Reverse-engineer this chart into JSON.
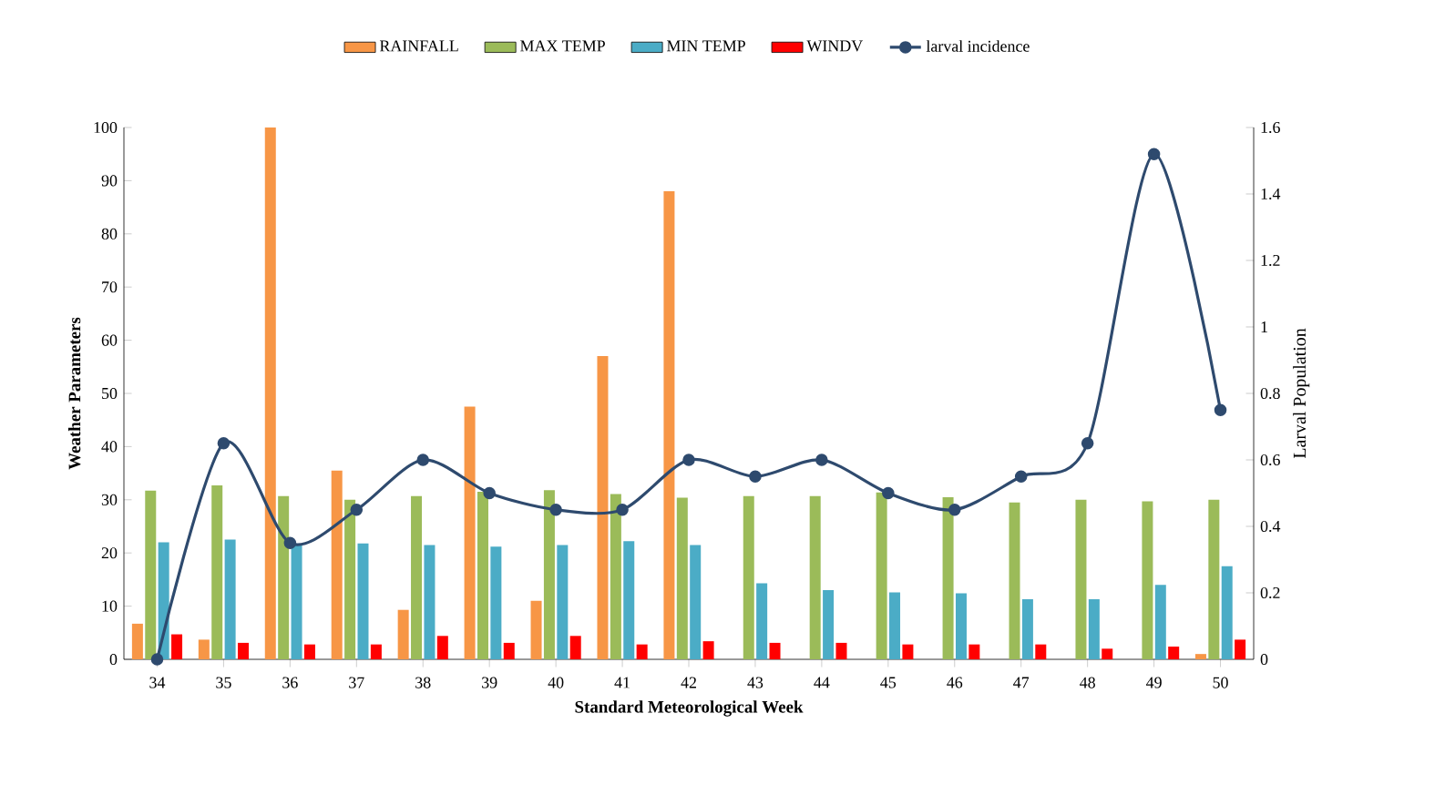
{
  "chart_data": {
    "type": "bar",
    "xlabel": "Standard Meteorological Week",
    "ylabel": "Weather Parameters",
    "y2label": "Larval Population",
    "categories": [
      "34",
      "35",
      "36",
      "37",
      "38",
      "39",
      "40",
      "41",
      "42",
      "43",
      "44",
      "45",
      "46",
      "47",
      "48",
      "49",
      "50"
    ],
    "series": [
      {
        "name": "RAINFALL",
        "color": "#f79646",
        "values": [
          6.7,
          3.7,
          100,
          35.5,
          9.3,
          47.5,
          11,
          57,
          88,
          0,
          0,
          0,
          0,
          0,
          0,
          0,
          1
        ]
      },
      {
        "name": "MAX TEMP",
        "color": "#9bbb59",
        "values": [
          31.7,
          32.7,
          30.7,
          30,
          30.7,
          31.5,
          31.8,
          31.1,
          30.4,
          30.7,
          30.7,
          31.4,
          30.5,
          29.5,
          30,
          29.7,
          30
        ]
      },
      {
        "name": "MIN TEMP",
        "color": "#4bacc6",
        "values": [
          22,
          22.5,
          21.5,
          21.8,
          21.5,
          21.2,
          21.5,
          22.2,
          21.5,
          14.3,
          13,
          12.6,
          12.4,
          11.3,
          11.3,
          14,
          17.5
        ]
      },
      {
        "name": "WINDV",
        "color": "#ff0000",
        "values": [
          4.7,
          3.1,
          2.8,
          2.8,
          4.4,
          3.1,
          4.4,
          2.8,
          3.4,
          3.1,
          3.1,
          2.8,
          2.8,
          2.8,
          2,
          2.4,
          3.7
        ]
      },
      {
        "name": "larval incidence",
        "type": "line",
        "axis": "y2",
        "color": "#2e4a6e",
        "marker": "circle",
        "values": [
          0,
          0.65,
          0.35,
          0.45,
          0.6,
          0.5,
          0.45,
          0.45,
          0.6,
          0.55,
          0.6,
          0.5,
          0.45,
          0.55,
          0.65,
          1.52,
          0.75
        ]
      }
    ],
    "ylim": [
      0,
      100
    ],
    "yticks": [
      0,
      10,
      20,
      30,
      40,
      50,
      60,
      70,
      80,
      90,
      100
    ],
    "y2lim": [
      0,
      1.6
    ],
    "y2ticks": [
      0,
      0.2,
      0.4,
      0.6,
      0.8,
      1,
      1.2,
      1.4,
      1.6
    ],
    "grid": false,
    "legend": "top"
  }
}
